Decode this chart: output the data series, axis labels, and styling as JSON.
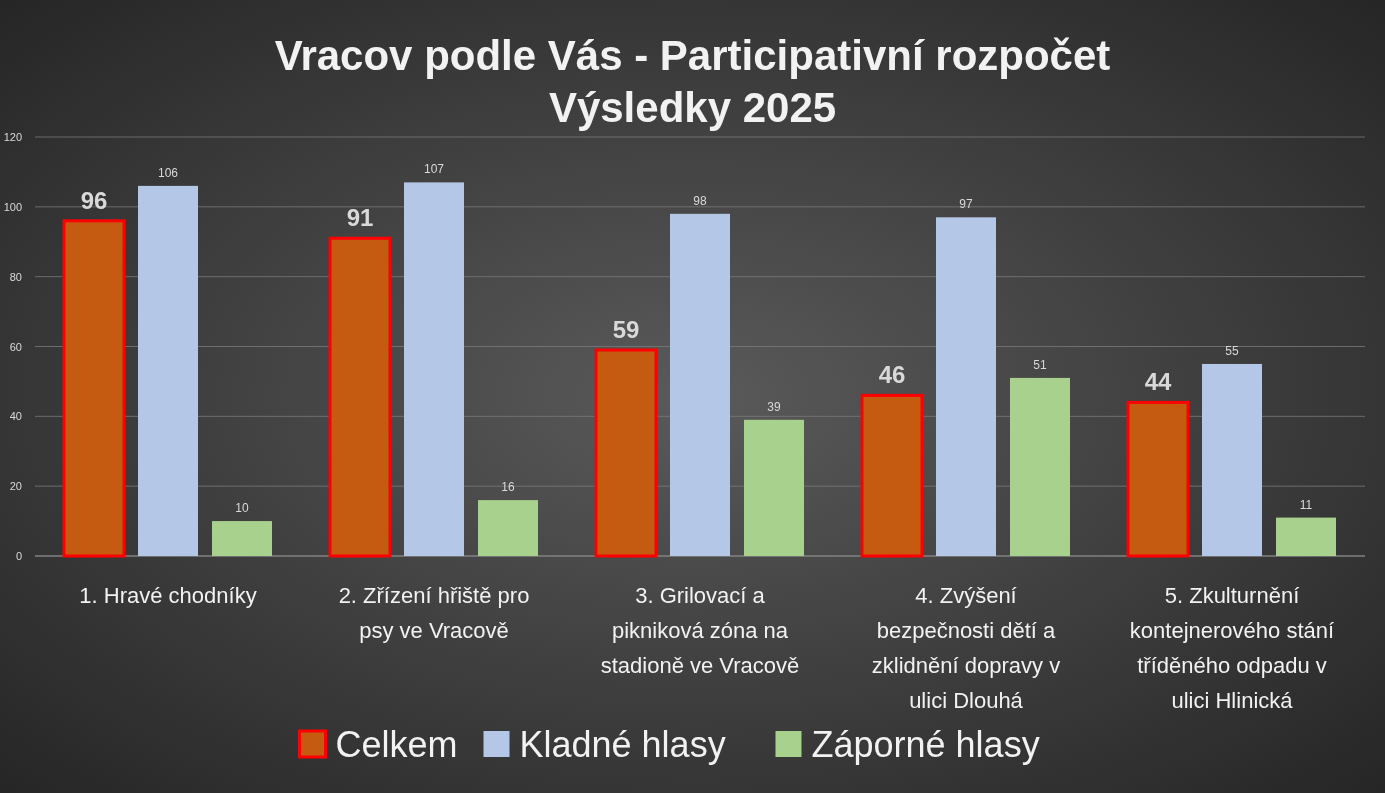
{
  "chart_data": {
    "type": "bar",
    "title": "Vracov podle Vás - Participativní rozpočet\nVýsledky 2025",
    "categories": [
      "1. Hravé chodníky",
      "2. Zřízení hřiště pro psy ve Vracově",
      "3. Grilovací a pikniková zóna na stadioně ve Vracově",
      "4. Zvýšení bezpečnosti dětí a zklidnění dopravy v ulici Dlouhá",
      "5. Zkulturnění kontejnerového stání tříděného odpadu v ulici Hlinická"
    ],
    "series": [
      {
        "name": "Celkem",
        "color": "#c55a11",
        "values": [
          96,
          91,
          59,
          46,
          44
        ]
      },
      {
        "name": "Kladné hlasy",
        "color": "#b4c7e7",
        "values": [
          106,
          107,
          98,
          97,
          55
        ]
      },
      {
        "name": "Záporné hlasy",
        "color": "#a9d18e",
        "values": [
          10,
          16,
          39,
          51,
          11
        ]
      }
    ],
    "ylim": [
      0,
      120
    ],
    "yticks": [
      0,
      20,
      40,
      60,
      80,
      100,
      120
    ],
    "grid": "y",
    "data_labels": true,
    "legend": "bottom"
  }
}
